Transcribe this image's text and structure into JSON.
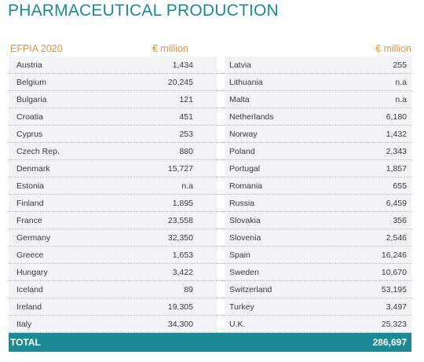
{
  "title": "PHARMACEUTICAL PRODUCTION",
  "header": {
    "left_label": "EFPIA 2020",
    "left_unit": "€ million",
    "right_unit": "€ million"
  },
  "left_rows": [
    {
      "country": "Austria",
      "value": "1,434"
    },
    {
      "country": "Belgium",
      "value": "20,245"
    },
    {
      "country": "Bulgaria",
      "value": "121"
    },
    {
      "country": "Croatia",
      "value": "451"
    },
    {
      "country": "Cyprus",
      "value": "253"
    },
    {
      "country": "Czech Rep.",
      "value": "880"
    },
    {
      "country": "Denmark",
      "value": "15,727"
    },
    {
      "country": "Estonia",
      "value": "n.a"
    },
    {
      "country": "Finland",
      "value": "1,895"
    },
    {
      "country": "France",
      "value": "23,558"
    },
    {
      "country": "Germany",
      "value": "32,350"
    },
    {
      "country": "Greece",
      "value": "1,653"
    },
    {
      "country": "Hungary",
      "value": "3,422"
    },
    {
      "country": "Iceland",
      "value": "89"
    },
    {
      "country": "Ireland",
      "value": "19,305"
    },
    {
      "country": "Italy",
      "value": "34,300"
    }
  ],
  "right_rows": [
    {
      "country": "Latvia",
      "value": "255"
    },
    {
      "country": "Lithuania",
      "value": "n.a"
    },
    {
      "country": "Malta",
      "value": "n.a"
    },
    {
      "country": "Netherlands",
      "value": "6,180"
    },
    {
      "country": "Norway",
      "value": "1,432"
    },
    {
      "country": "Poland",
      "value": "2,343"
    },
    {
      "country": "Portugal",
      "value": "1,857"
    },
    {
      "country": "Romania",
      "value": "655"
    },
    {
      "country": "Russia",
      "value": "6,459"
    },
    {
      "country": "Slovakia",
      "value": "356"
    },
    {
      "country": "Slovenia",
      "value": "2,546"
    },
    {
      "country": "Spain",
      "value": "16,246"
    },
    {
      "country": "Sweden",
      "value": "10,670"
    },
    {
      "country": "Switzerland",
      "value": "53,195"
    },
    {
      "country": "Turkey",
      "value": "3,497"
    },
    {
      "country": "U.K.",
      "value": "25,323"
    }
  ],
  "total": {
    "label": "TOTAL",
    "value": "286,697"
  },
  "colors": {
    "accent_teal": "#1b8a96",
    "header_orange": "#e8923a",
    "row_background": "#f2f3f4"
  }
}
